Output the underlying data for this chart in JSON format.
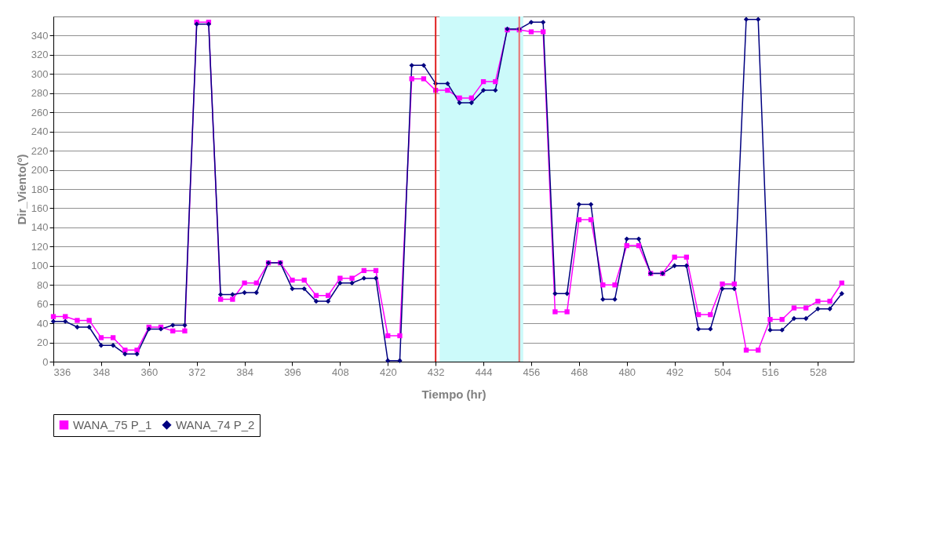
{
  "chart_data": {
    "type": "line",
    "xlabel": "Tiempo (hr)",
    "ylabel": "Dir_Viento(º)",
    "x": [
      336,
      339,
      342,
      345,
      348,
      351,
      354,
      357,
      360,
      363,
      366,
      369,
      372,
      375,
      378,
      381,
      384,
      387,
      390,
      393,
      396,
      399,
      402,
      405,
      408,
      411,
      414,
      417,
      420,
      423,
      426,
      429,
      432,
      435,
      438,
      441,
      444,
      447,
      450,
      453,
      456,
      459,
      462,
      465,
      468,
      471,
      474,
      477,
      480,
      483,
      486,
      489,
      492,
      495,
      498,
      501,
      504,
      507,
      510,
      513,
      516,
      519,
      522,
      525,
      528,
      531,
      534
    ],
    "series": [
      {
        "name": "WANA_75 P_1",
        "color": "#ff00ff",
        "marker": "square",
        "values": [
          47,
          47,
          43,
          43,
          25,
          25,
          12,
          12,
          36,
          36,
          32,
          32,
          354,
          354,
          65,
          65,
          82,
          82,
          103,
          103,
          85,
          85,
          69,
          69,
          87,
          87,
          95,
          95,
          27,
          27,
          295,
          295,
          283,
          283,
          275,
          275,
          292,
          292,
          346,
          346,
          344,
          344,
          52,
          52,
          148,
          148,
          80,
          80,
          121,
          121,
          92,
          92,
          109,
          109,
          49,
          49,
          81,
          81,
          12,
          12,
          44,
          44,
          56,
          56,
          63,
          63,
          82
        ]
      },
      {
        "name": "WANA_74 P_2",
        "color": "#000080",
        "marker": "diamond",
        "values": [
          42,
          42,
          36,
          36,
          17,
          17,
          8,
          8,
          34,
          34,
          38,
          38,
          352,
          352,
          70,
          70,
          72,
          72,
          103,
          103,
          76,
          76,
          63,
          63,
          82,
          82,
          87,
          87,
          1,
          1,
          309,
          309,
          290,
          290,
          270,
          270,
          283,
          283,
          347,
          347,
          354,
          354,
          71,
          71,
          164,
          164,
          65,
          65,
          128,
          128,
          92,
          92,
          100,
          100,
          34,
          34,
          76,
          76,
          357,
          357,
          33,
          33,
          45,
          45,
          55,
          55,
          71
        ]
      }
    ],
    "xlim": [
      336,
      537
    ],
    "xticks": [
      336,
      348,
      360,
      372,
      384,
      396,
      408,
      420,
      432,
      444,
      456,
      468,
      480,
      492,
      504,
      516,
      528
    ],
    "ylim": [
      0,
      360
    ],
    "yticks": [
      0,
      20,
      40,
      60,
      80,
      100,
      120,
      140,
      160,
      180,
      200,
      220,
      240,
      260,
      280,
      300,
      320,
      340
    ],
    "ref_lines": [
      {
        "axis": "x",
        "value": 432,
        "color": "#e02020"
      },
      {
        "axis": "x",
        "value": 453,
        "color": "#e87070"
      }
    ],
    "bands": [
      {
        "axis": "x",
        "from": 433,
        "to": 454,
        "color": "#ccfafa"
      }
    ],
    "grid": "y",
    "legend": "bottom",
    "line_style": "solid"
  }
}
